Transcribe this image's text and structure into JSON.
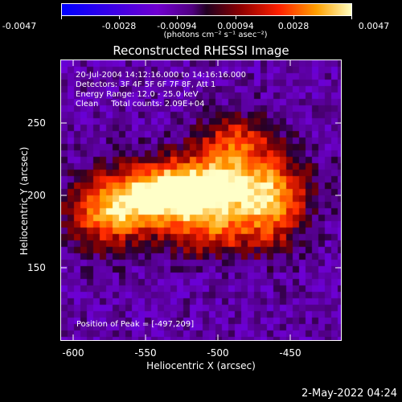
{
  "colorbar": {
    "tick_labels": [
      "-0.0047",
      "-0.0028",
      "-0.00094",
      "0.00094",
      "0.0028",
      "0.0047"
    ],
    "units": "(photons cm⁻² s⁻¹ asec⁻²)"
  },
  "title": "Reconstructed RHESSI Image",
  "info": {
    "line1": "20-Jul-2004 14:12:16.000 to 14:16:16.000",
    "line2": "Detectors: 3F 4F 5F 6F 7F 8F, Att 1",
    "line3": "Energy Range: 12.0 - 25.0 keV",
    "line4": "Clean     Total counts: 2.09E+04"
  },
  "peak_text": "Position of Peak = [-497,209]",
  "xlabel": "Heliocentric X (arcsec)",
  "ylabel": "Heliocentric Y (arcsec)",
  "x_ticks": [
    "-600",
    "-550",
    "-500",
    "-450"
  ],
  "y_ticks": [
    "250",
    "200",
    "150"
  ],
  "footer_date": "2-May-2022 04:24",
  "chart_data": {
    "type": "heatmap",
    "title": "Reconstructed RHESSI Image",
    "xlabel": "Heliocentric X (arcsec)",
    "ylabel": "Heliocentric Y (arcsec)",
    "xlim": [
      -610,
      -415
    ],
    "ylim": [
      100,
      295
    ],
    "colorbar_range": [
      -0.0047,
      0.0047
    ],
    "peak": [
      -497,
      209
    ]
  }
}
